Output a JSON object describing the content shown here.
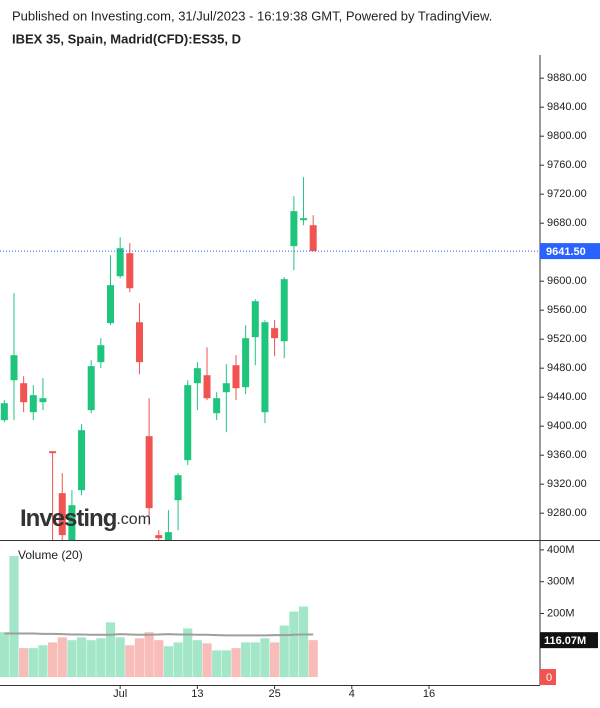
{
  "header": {
    "published": "Published on Investing.com, 31/Jul/2023 - 16:19:38 GMT, Powered by TradingView.",
    "symbol": "IBEX 35, Spain, Madrid(CFD):ES35, D"
  },
  "watermark": {
    "brand": "Investing",
    "suffix": ".com"
  },
  "chart_data": [
    {
      "type": "candlestick",
      "x": [
        0,
        1,
        2,
        3,
        4,
        5,
        6,
        7,
        8,
        9,
        10,
        11,
        12,
        13,
        14,
        15,
        16,
        17,
        18,
        19,
        20,
        21,
        22,
        23,
        24,
        25,
        26,
        27,
        28,
        29,
        30,
        31,
        32
      ],
      "open": [
        9408.3,
        9463.4,
        9459.3,
        9419.3,
        9433.1,
        9365.5,
        9307.6,
        9235.9,
        9311.7,
        9422.1,
        9488.3,
        9542.1,
        9606.9,
        9638.6,
        9543.4,
        9386.2,
        9249.7,
        9242.8,
        9297.9,
        9353.1,
        9459.3,
        9470.3,
        9417.9,
        9446.9,
        9484.1,
        9453.8,
        9522.8,
        9419.3,
        9535.2,
        9517.2,
        9648.3,
        9684.1,
        9677.2
      ],
      "high": [
        9435.9,
        9583.4,
        9469.0,
        9456.6,
        9466.2,
        9365.5,
        9335.2,
        9311.7,
        9402.8,
        9491.0,
        9521.4,
        9635.9,
        9660.7,
        9652.4,
        9569.7,
        9438.6,
        9256.6,
        9284.1,
        9335.2,
        9463.4,
        9488.3,
        9508.9,
        9446.9,
        9485.5,
        9497.9,
        9539.3,
        9575.2,
        9546.2,
        9546.2,
        9605.5,
        9717.2,
        9743.4,
        9691.0
      ],
      "low": [
        9405.5,
        9408.3,
        9419.3,
        9408.3,
        9422.1,
        9230,
        9225,
        9220,
        9304.8,
        9417.9,
        9480.0,
        9539.3,
        9604.1,
        9584.8,
        9471.7,
        9263.4,
        9238,
        9225,
        9256.6,
        9346.2,
        9422.1,
        9435.9,
        9408.3,
        9391.7,
        9435.9,
        9444.1,
        9484.1,
        9404.1,
        9496.6,
        9493.8,
        9615.2,
        9677.2,
        9641.5
      ],
      "close": [
        9431.7,
        9497.9,
        9433.1,
        9442.8,
        9438.6,
        9362.8,
        9249.7,
        9291.0,
        9394.5,
        9482.8,
        9511.7,
        9594.5,
        9645.5,
        9590.3,
        9488.3,
        9286.9,
        9245.5,
        9253.8,
        9332.4,
        9456.6,
        9480.0,
        9438.6,
        9438.6,
        9459.3,
        9452.4,
        9521.4,
        9572.4,
        9543.4,
        9521.4,
        9602.8,
        9696.6,
        9686.9,
        9641.5
      ],
      "up_color": "#1fc47d",
      "down_color": "#f05350",
      "xlim": [
        -0.45,
        55.5
      ],
      "ylim": [
        9243,
        9912
      ],
      "yticks": [
        {
          "value": 9280,
          "label": "9280.00"
        },
        {
          "value": 9320,
          "label": "9320.00"
        },
        {
          "value": 9360,
          "label": "9360.00"
        },
        {
          "value": 9400,
          "label": "9400.00"
        },
        {
          "value": 9440,
          "label": "9440.00"
        },
        {
          "value": 9480,
          "label": "9480.00"
        },
        {
          "value": 9520,
          "label": "9520.00"
        },
        {
          "value": 9560,
          "label": "9560.00"
        },
        {
          "value": 9600,
          "label": "9600.00"
        },
        {
          "value": 9640,
          "label": "9640.00"
        },
        {
          "value": 9680,
          "label": "9680.00"
        },
        {
          "value": 9720,
          "label": "9720.00"
        },
        {
          "value": 9760,
          "label": "9760.00"
        },
        {
          "value": 9800,
          "label": "9800.00"
        },
        {
          "value": 9840,
          "label": "9840.00"
        },
        {
          "value": 9880,
          "label": "9880.00"
        }
      ],
      "last_price": {
        "value": 9641.5,
        "label": "9641.50"
      },
      "last_price_color": "#2962ff"
    },
    {
      "type": "bar",
      "title": "Volume (20)",
      "x": [
        0,
        1,
        2,
        3,
        4,
        5,
        6,
        7,
        8,
        9,
        10,
        11,
        12,
        13,
        14,
        15,
        16,
        17,
        18,
        19,
        20,
        21,
        22,
        23,
        24,
        25,
        26,
        27,
        28,
        29,
        30,
        31,
        32
      ],
      "values": [
        141,
        381,
        91,
        91,
        100,
        109,
        125,
        116,
        125,
        116,
        122,
        172,
        125,
        100,
        122,
        141,
        116,
        97,
        109,
        153,
        116,
        106,
        84,
        84,
        91,
        109,
        109,
        122,
        109,
        162,
        206,
        222,
        116.07
      ],
      "up_color": "#a3e7c8",
      "down_color": "#f8bcb9",
      "ma_values": [
        137,
        137,
        137,
        137,
        136,
        136,
        135,
        134,
        134,
        133,
        133,
        133,
        135,
        134,
        133,
        133,
        134,
        135,
        134,
        134,
        133,
        133,
        132,
        131,
        131,
        131,
        131,
        131,
        132,
        132,
        133,
        134,
        134
      ],
      "ma_color": "#9e9e9e",
      "xlim": [
        -0.45,
        55.5
      ],
      "ylim": [
        -25,
        428
      ],
      "xticks": [
        {
          "value": 12,
          "label": "Jul"
        },
        {
          "value": 20,
          "label": "13"
        },
        {
          "value": 28,
          "label": "25"
        },
        {
          "value": 36,
          "label": "4"
        },
        {
          "value": 44,
          "label": "16"
        }
      ],
      "yticks": [
        {
          "value": 200,
          "label": "200M"
        },
        {
          "value": 300,
          "label": "300M"
        },
        {
          "value": 400,
          "label": "400M"
        }
      ],
      "last_value": {
        "value": 116.07,
        "label": "116.07M"
      },
      "zero_marker": 0,
      "zero_marker_color": "#f05350"
    }
  ]
}
